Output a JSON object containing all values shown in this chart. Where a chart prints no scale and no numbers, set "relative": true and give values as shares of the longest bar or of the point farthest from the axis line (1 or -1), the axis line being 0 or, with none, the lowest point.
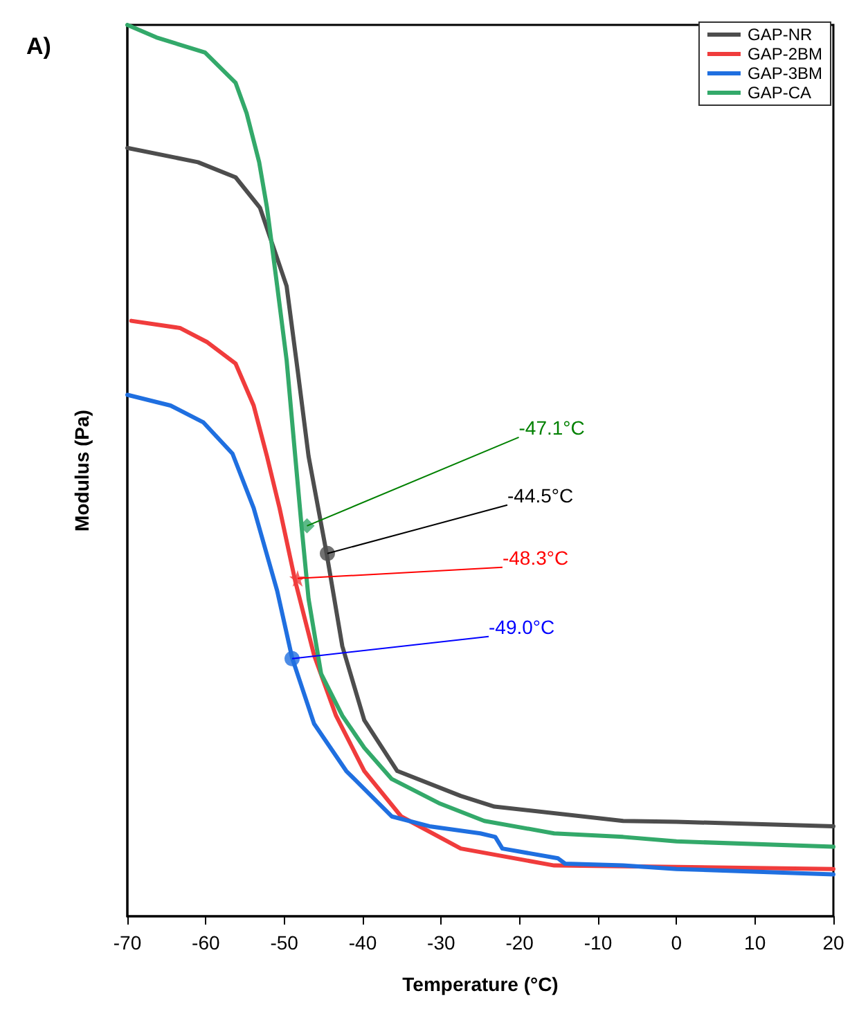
{
  "chart_data": {
    "type": "line",
    "relative": true,
    "title": "A)",
    "xlabel": "Temperature (°C)",
    "ylabel": "Modulus (Pa)",
    "xlim": [
      -70,
      20
    ],
    "xticks": [
      -70,
      -60,
      -50,
      -40,
      -30,
      -20,
      -10,
      0,
      10,
      20
    ],
    "legend": "top right",
    "grid": false,
    "marker": "none",
    "line_style": "solid",
    "series": [
      {
        "name": "GAP-NR",
        "color": "#4d4d4d",
        "x": [
          -70,
          -61,
          -56.2,
          -53.1,
          -49.7,
          -48.3,
          -46.9,
          -44.6,
          -42.6,
          -39.8,
          -35.6,
          -27.5,
          -23.2,
          -6.8,
          0,
          20
        ],
        "values": [
          0.862,
          0.846,
          0.829,
          0.795,
          0.707,
          0.613,
          0.516,
          0.407,
          0.303,
          0.22,
          0.163,
          0.135,
          0.123,
          0.107,
          0.106,
          0.101
        ]
      },
      {
        "name": "GAP-2BM",
        "color": "#f03c3c",
        "x": [
          -69.5,
          -63.3,
          -59.8,
          -56.2,
          -53.9,
          -52.2,
          -50.6,
          -48.6,
          -46.2,
          -43.4,
          -39.8,
          -35.1,
          -27.5,
          -15.6,
          20
        ],
        "values": [
          0.668,
          0.66,
          0.644,
          0.62,
          0.573,
          0.516,
          0.458,
          0.376,
          0.293,
          0.225,
          0.163,
          0.112,
          0.076,
          0.057,
          0.053
        ]
      },
      {
        "name": "GAP-3BM",
        "color": "#1f6fe0",
        "x": [
          -70,
          -64.5,
          -60.3,
          -56.6,
          -53.9,
          -50.9,
          -49,
          -46.2,
          -42.1,
          -36.3,
          -31.5,
          -25,
          -23.1,
          -22.2,
          -15.1,
          -14.2,
          -6.8,
          0,
          20
        ],
        "values": [
          0.585,
          0.573,
          0.554,
          0.519,
          0.458,
          0.365,
          0.29,
          0.216,
          0.163,
          0.112,
          0.101,
          0.093,
          0.089,
          0.076,
          0.065,
          0.059,
          0.057,
          0.053,
          0.047
        ]
      },
      {
        "name": "GAP-CA",
        "color": "#33a96a",
        "x": [
          -70,
          -66.3,
          -60.1,
          -56.2,
          -54.8,
          -53.2,
          -52.2,
          -50.9,
          -49.7,
          -48.6,
          -47.8,
          -46.9,
          -45.3,
          -42.6,
          -39.8,
          -36.3,
          -30.3,
          -24.5,
          -15.6,
          -6.8,
          0,
          20
        ],
        "values": [
          1,
          0.986,
          0.969,
          0.935,
          0.901,
          0.846,
          0.795,
          0.707,
          0.624,
          0.516,
          0.438,
          0.356,
          0.272,
          0.225,
          0.189,
          0.154,
          0.127,
          0.107,
          0.093,
          0.089,
          0.084,
          0.078
        ]
      }
    ],
    "annotations": [
      {
        "text": "-44.5°C",
        "x": -44.5,
        "y": 0.407
      },
      {
        "text": "-48.3°C",
        "x": -48.3,
        "y": 0.379
      },
      {
        "text": "-49.0°C",
        "x": -49,
        "y": 0.289
      },
      {
        "text": "-47.1°C",
        "x": -47.1,
        "y": 0.438
      }
    ]
  }
}
